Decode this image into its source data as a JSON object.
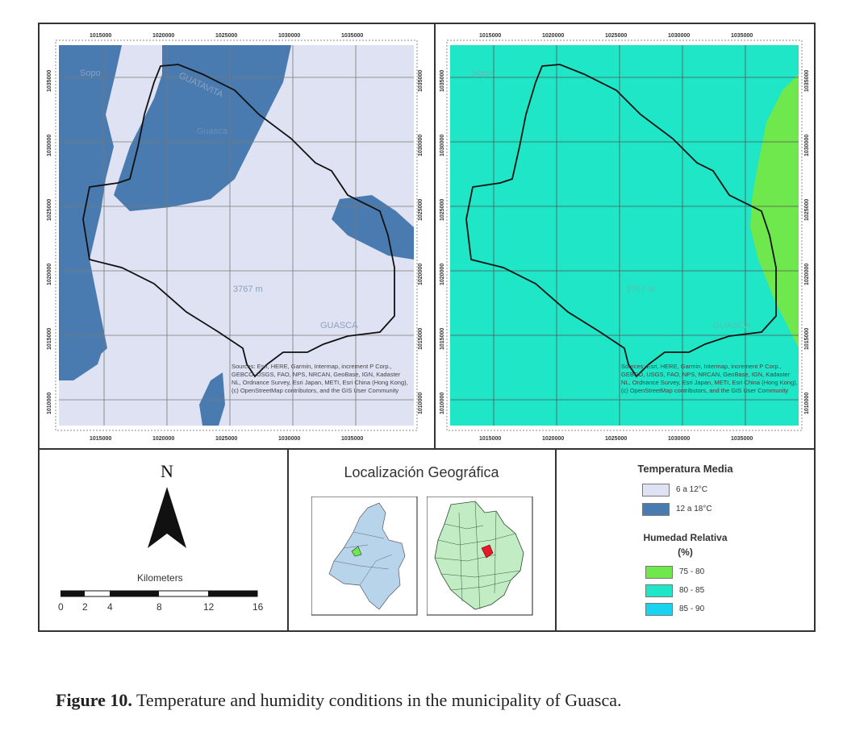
{
  "map_panels": {
    "x_ticks": [
      "1015000",
      "1020000",
      "1025000",
      "1030000",
      "1035000"
    ],
    "y_ticks": [
      "1035000",
      "1030000",
      "1025000",
      "1020000",
      "1015000",
      "1010000"
    ],
    "place_labels": [
      "Sopo",
      "GUATAVITA",
      "GUASCA",
      "Guasca",
      "3767 m",
      "GUASCA"
    ],
    "attribution": "Sources: Esri, HERE, Garmin, Intermap, increment P Corp., GEBCO, USGS, FAO, NPS, NRCAN, GeoBase, IGN, Kadaster NL, Ordnance Survey, Esri Japan, METI, Esri China (Hong Kong), (c) OpenStreetMap contributors, and the GIS User Community",
    "colors": {
      "temp_low": "#dfe2f2",
      "temp_high": "#4a7bb0",
      "humidity_75_80": "#6ee84c",
      "humidity_80_85": "#1ee6c6",
      "humidity_85_90": "#1ad3f0"
    }
  },
  "north_arrow": {
    "letter": "N",
    "scale_label": "Kilometers",
    "scale_ticks": [
      "0",
      "2",
      "4",
      "8",
      "12",
      "16"
    ]
  },
  "location": {
    "title": "Localización Geográfica"
  },
  "legend": {
    "temperature_title": "Temperatura Media",
    "temperature_items": [
      {
        "label": "6 a 12°C",
        "color": "#dfe2f2"
      },
      {
        "label": "12 a 18°C",
        "color": "#4a7bb0"
      }
    ],
    "humidity_title_line1": "Humedad Relativa",
    "humidity_title_line2": "(%)",
    "humidity_items": [
      {
        "label": "75 - 80",
        "color": "#6ee84c"
      },
      {
        "label": "80 - 85",
        "color": "#1ee6c6"
      },
      {
        "label": "85 - 90",
        "color": "#1ad3f0"
      }
    ]
  },
  "caption": {
    "label": "Figure 10.",
    "text": " Temperature and humidity conditions in the municipality of Guasca."
  }
}
